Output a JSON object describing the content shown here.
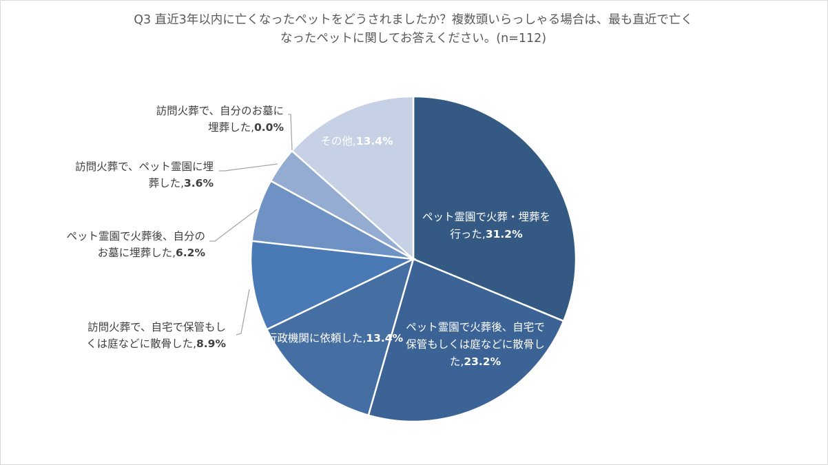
{
  "chart_data": {
    "type": "pie",
    "title_lines": [
      "Q3 直近3年以内に亡くなったペットをどうされましたか？複数頭いらっしゃる場合は、最も直近で亡く",
      "なったペットに関してお答えください。(n=112)"
    ],
    "slices": [
      {
        "label_lines": [
          "ペット霊園で火葬・埋葬を",
          "行った,"
        ],
        "value": 31.2,
        "value_label": "31.2%",
        "color": "#345a84"
      },
      {
        "label_lines": [
          "ペット霊園で火葬後、自宅で",
          "保管もしくは庭などに散骨し",
          "た,"
        ],
        "value": 23.2,
        "value_label": "23.2%",
        "color": "#3c6395"
      },
      {
        "label_lines": [
          "行政機関に依頼した,"
        ],
        "value": 13.4,
        "value_label": "13.4%",
        "color": "#456ea2"
      },
      {
        "label_lines": [
          "訪問火葬で、自宅で保管もし",
          "くは庭などに散骨した,"
        ],
        "value": 8.9,
        "value_label": "8.9%",
        "color": "#4a7ab5"
      },
      {
        "label_lines": [
          "ペット霊園で火葬後、自分の",
          "お墓に埋葬した,"
        ],
        "value": 6.2,
        "value_label": "6.2%",
        "color": "#6f92c4"
      },
      {
        "label_lines": [
          "訪問火葬で、ペット霊園に埋",
          "葬した,"
        ],
        "value": 3.6,
        "value_label": "3.6%",
        "color": "#95acd2"
      },
      {
        "label_lines": [
          "訪問火葬で、自分のお墓に",
          "埋葬した,"
        ],
        "value": 0.0,
        "value_label": "0.0%",
        "color": "#adbfdc"
      },
      {
        "label_lines": [
          "その他,"
        ],
        "value": 13.4,
        "value_label": "13.4%",
        "color": "#c6d1e6"
      }
    ]
  }
}
